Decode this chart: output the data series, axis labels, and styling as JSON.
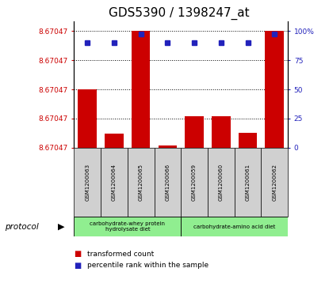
{
  "title": "GDS5390 / 1398247_at",
  "samples": [
    "GSM1200063",
    "GSM1200064",
    "GSM1200065",
    "GSM1200066",
    "GSM1200059",
    "GSM1200060",
    "GSM1200061",
    "GSM1200062"
  ],
  "red_bar_values": [
    0.5,
    0.12,
    1.0,
    0.018,
    0.27,
    0.27,
    0.13,
    1.0
  ],
  "blue_dot_values": [
    0.9,
    0.9,
    0.97,
    0.9,
    0.9,
    0.9,
    0.9,
    0.97
  ],
  "ytick_label": "8.67047",
  "ytick_positions": [
    0.0,
    0.25,
    0.5,
    0.75,
    1.0
  ],
  "ytick_right_vals": [
    0,
    25,
    50,
    75,
    100
  ],
  "group1_label": "carbohydrate-whey protein\nhydrolysate diet",
  "group2_label": "carbohydrate-amino acid diet",
  "group_color": "#90EE90",
  "sample_box_color": "#D0D0D0",
  "protocol_label": "protocol",
  "legend_red_label": "transformed count",
  "legend_blue_label": "percentile rank within the sample",
  "bar_color": "#CC0000",
  "dot_color": "#2222BB",
  "left_tick_color": "#CC0000",
  "right_tick_color": "#2222BB",
  "title_fontsize": 11
}
